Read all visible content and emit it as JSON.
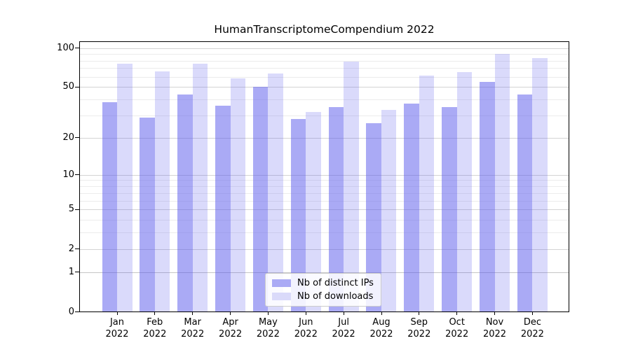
{
  "title": "HumanTranscriptomeCompendium 2022",
  "chart_data": {
    "type": "bar",
    "title": "HumanTranscriptomeCompendium 2022",
    "categories": [
      "Jan",
      "Feb",
      "Mar",
      "Apr",
      "May",
      "Jun",
      "Jul",
      "Aug",
      "Sep",
      "Oct",
      "Nov",
      "Dec"
    ],
    "category_year": "2022",
    "series": [
      {
        "name": "Nb of distinct IPs",
        "color": "rgba(85,85,235,0.50)",
        "legend_color": "#aaaaf5",
        "values": [
          38,
          29,
          44,
          36,
          50,
          28,
          35,
          26,
          37,
          35,
          55,
          44
        ]
      },
      {
        "name": "Nb of downloads",
        "color": "rgba(85,85,235,0.22)",
        "legend_color": "#dadafa",
        "values": [
          76,
          66,
          76,
          58,
          64,
          32,
          79,
          33,
          61,
          65,
          90,
          84
        ]
      }
    ],
    "yscale": "log1p",
    "yticks": [
      0,
      1,
      2,
      5,
      10,
      20,
      50,
      100
    ],
    "minor_gridlines": [
      3,
      4,
      6,
      7,
      8,
      9,
      30,
      40,
      60,
      70,
      80,
      90
    ],
    "ylim": [
      0,
      113
    ],
    "grid": true,
    "legend_position": "lower-center-inside",
    "axis_color": "#000000",
    "grid_major_color": "#d4d4d4",
    "grid_minor_color": "#ececec"
  }
}
